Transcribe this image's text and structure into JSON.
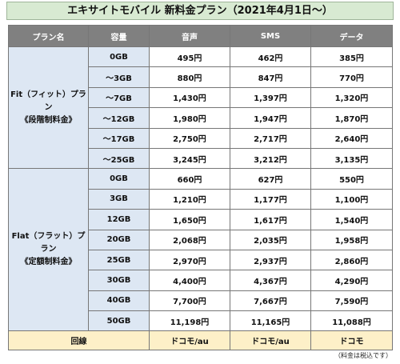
{
  "title": "エキサイトモバイル 新料金プラン（2021年4月1日〜）",
  "header": [
    "プラン名",
    "容量",
    "音声",
    "SMS",
    "データ"
  ],
  "groups": [
    {
      "name": "Fit（フィット）プラン",
      "sub": "《段階制料金》",
      "rows": [
        [
          "0GB",
          "495円",
          "462円",
          "385円"
        ],
        [
          "〜3GB",
          "880円",
          "847円",
          "770円"
        ],
        [
          "〜7GB",
          "1,430円",
          "1,397円",
          "1,320円"
        ],
        [
          "〜12GB",
          "1,980円",
          "1,947円",
          "1,870円"
        ],
        [
          "〜17GB",
          "2,750円",
          "2,717円",
          "2,640円"
        ],
        [
          "〜25GB",
          "3,245円",
          "3,212円",
          "3,135円"
        ]
      ]
    },
    {
      "name": "Flat（フラット）プラン",
      "sub": "《定額制料金》",
      "rows": [
        [
          "0GB",
          "660円",
          "627円",
          "550円"
        ],
        [
          "3GB",
          "1,210円",
          "1,177円",
          "1,100円"
        ],
        [
          "12GB",
          "1,650円",
          "1,617円",
          "1,540円"
        ],
        [
          "20GB",
          "2,068円",
          "2,035円",
          "1,958円"
        ],
        [
          "25GB",
          "2,970円",
          "2,937円",
          "2,860円"
        ],
        [
          "30GB",
          "4,400円",
          "4,367円",
          "4,290円"
        ],
        [
          "40GB",
          "7,700円",
          "7,667円",
          "7,590円"
        ],
        [
          "50GB",
          "11,198円",
          "11,165円",
          "11,088円"
        ]
      ]
    }
  ],
  "footer": {
    "label": "回線",
    "cells": [
      "ドコモ/au",
      "ドコモ/au",
      "ドコモ"
    ]
  },
  "note": "（料金は税込です）"
}
